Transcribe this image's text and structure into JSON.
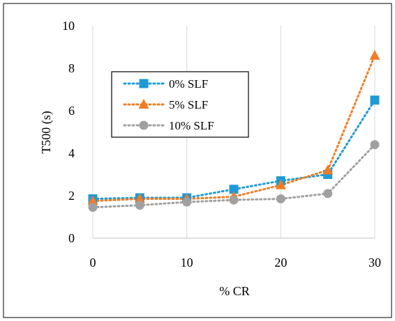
{
  "chart_data": {
    "type": "line",
    "xlabel": "% CR",
    "ylabel": "T500 (s)",
    "xlim": [
      0,
      30
    ],
    "ylim": [
      0,
      10
    ],
    "x_ticks": [
      0,
      10,
      20,
      30
    ],
    "y_ticks": [
      0,
      2,
      4,
      6,
      8,
      10
    ],
    "grid": "vertical",
    "legend_position": "left-middle",
    "x": [
      0,
      5,
      10,
      15,
      20,
      25,
      30
    ],
    "series": [
      {
        "name": "0% SLF",
        "color": "#1f9ad6",
        "marker": "square",
        "values": [
          1.85,
          1.9,
          1.9,
          2.3,
          2.7,
          3.0,
          6.5
        ]
      },
      {
        "name": "5% SLF",
        "color": "#f07c25",
        "marker": "triangle",
        "values": [
          1.75,
          1.85,
          1.85,
          1.95,
          2.5,
          3.2,
          8.6
        ]
      },
      {
        "name": "10% SLF",
        "color": "#a0a0a0",
        "marker": "circle",
        "values": [
          1.45,
          1.55,
          1.7,
          1.8,
          1.85,
          2.1,
          4.4
        ]
      }
    ]
  }
}
